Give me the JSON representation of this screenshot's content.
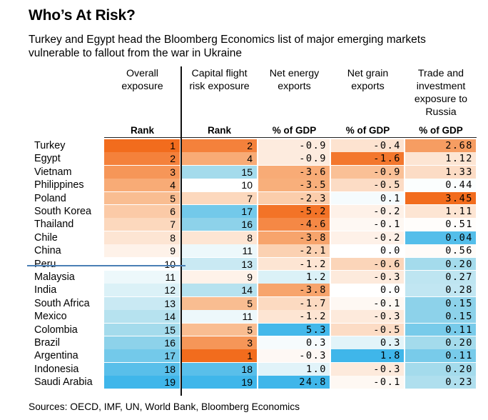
{
  "title": "Who’s At Risk?",
  "subtitle": "Turkey and Egypt head the Bloomberg Economics list of major emerging markets vulnerable to fallout from the war in Ukraine",
  "source": "Sources: OECD, IMF, UN, World Bank, Bloomberg Economics",
  "colors": {
    "high": "#f26c1d",
    "mid": "#f9b888",
    "neutral": "#ffffff",
    "low": "#9dd8ea",
    "lowest": "#3fb6ea"
  },
  "chart_data": {
    "type": "table",
    "columns": [
      {
        "key": "overall",
        "header": [
          "Overall",
          "exposure"
        ],
        "unit": "Rank"
      },
      {
        "key": "capital",
        "header": [
          "Capital flight",
          "risk exposure"
        ],
        "unit": "Rank"
      },
      {
        "key": "energy",
        "header": [
          "Net energy",
          "exports"
        ],
        "unit": "% of GDP"
      },
      {
        "key": "grain",
        "header": [
          "Net grain",
          "exports"
        ],
        "unit": "% of GDP"
      },
      {
        "key": "trade",
        "header": [
          "Trade and",
          "investment",
          "exposure to",
          "Russia"
        ],
        "unit": "% of GDP"
      }
    ],
    "rows": [
      {
        "country": "Turkey",
        "overall": "1",
        "capital": "2",
        "energy": "-0.9",
        "grain": "-0.4",
        "trade": "2.68"
      },
      {
        "country": "Egypt",
        "overall": "2",
        "capital": "4",
        "energy": "-0.9",
        "grain": "-1.6",
        "trade": "1.12"
      },
      {
        "country": "Vietnam",
        "overall": "3",
        "capital": "15",
        "energy": "-3.6",
        "grain": "-0.9",
        "trade": "1.33"
      },
      {
        "country": "Philippines",
        "overall": "4",
        "capital": "10",
        "energy": "-3.5",
        "grain": "-0.5",
        "trade": "0.44"
      },
      {
        "country": "Poland",
        "overall": "5",
        "capital": "7",
        "energy": "-2.3",
        "grain": "0.1",
        "trade": "3.45"
      },
      {
        "country": "South Korea",
        "overall": "6",
        "capital": "17",
        "energy": "-5.2",
        "grain": "-0.2",
        "trade": "1.11"
      },
      {
        "country": "Thailand",
        "overall": "7",
        "capital": "16",
        "energy": "-4.6",
        "grain": "-0.1",
        "trade": "0.51"
      },
      {
        "country": "Chile",
        "overall": "8",
        "capital": "8",
        "energy": "-3.8",
        "grain": "-0.2",
        "trade": "0.04"
      },
      {
        "country": "China",
        "overall": "9",
        "capital": "11",
        "energy": "-2.1",
        "grain": "0.0",
        "trade": "0.56"
      },
      {
        "country": "Peru",
        "overall": "10",
        "capital": "13",
        "energy": "-1.2",
        "grain": "-0.6",
        "trade": "0.20"
      },
      {
        "country": "Malaysia",
        "overall": "11",
        "capital": "9",
        "energy": "1.2",
        "grain": "-0.3",
        "trade": "0.27"
      },
      {
        "country": "India",
        "overall": "12",
        "capital": "14",
        "energy": "-3.8",
        "grain": "0.0",
        "trade": "0.28"
      },
      {
        "country": "South Africa",
        "overall": "13",
        "capital": "5",
        "energy": "-1.7",
        "grain": "-0.1",
        "trade": "0.15"
      },
      {
        "country": "Mexico",
        "overall": "14",
        "capital": "11",
        "energy": "-1.2",
        "grain": "-0.3",
        "trade": "0.15"
      },
      {
        "country": "Colombia",
        "overall": "15",
        "capital": "5",
        "energy": "5.3",
        "grain": "-0.5",
        "trade": "0.11"
      },
      {
        "country": "Brazil",
        "overall": "16",
        "capital": "3",
        "energy": "0.3",
        "grain": "0.3",
        "trade": "0.20"
      },
      {
        "country": "Argentina",
        "overall": "17",
        "capital": "1",
        "energy": "-0.3",
        "grain": "1.8",
        "trade": "0.11"
      },
      {
        "country": "Indonesia",
        "overall": "18",
        "capital": "18",
        "energy": "1.0",
        "grain": "-0.3",
        "trade": "0.20"
      },
      {
        "country": "Saudi Arabia",
        "overall": "19",
        "capital": "19",
        "energy": "24.8",
        "grain": "-0.1",
        "trade": "0.23"
      }
    ]
  }
}
